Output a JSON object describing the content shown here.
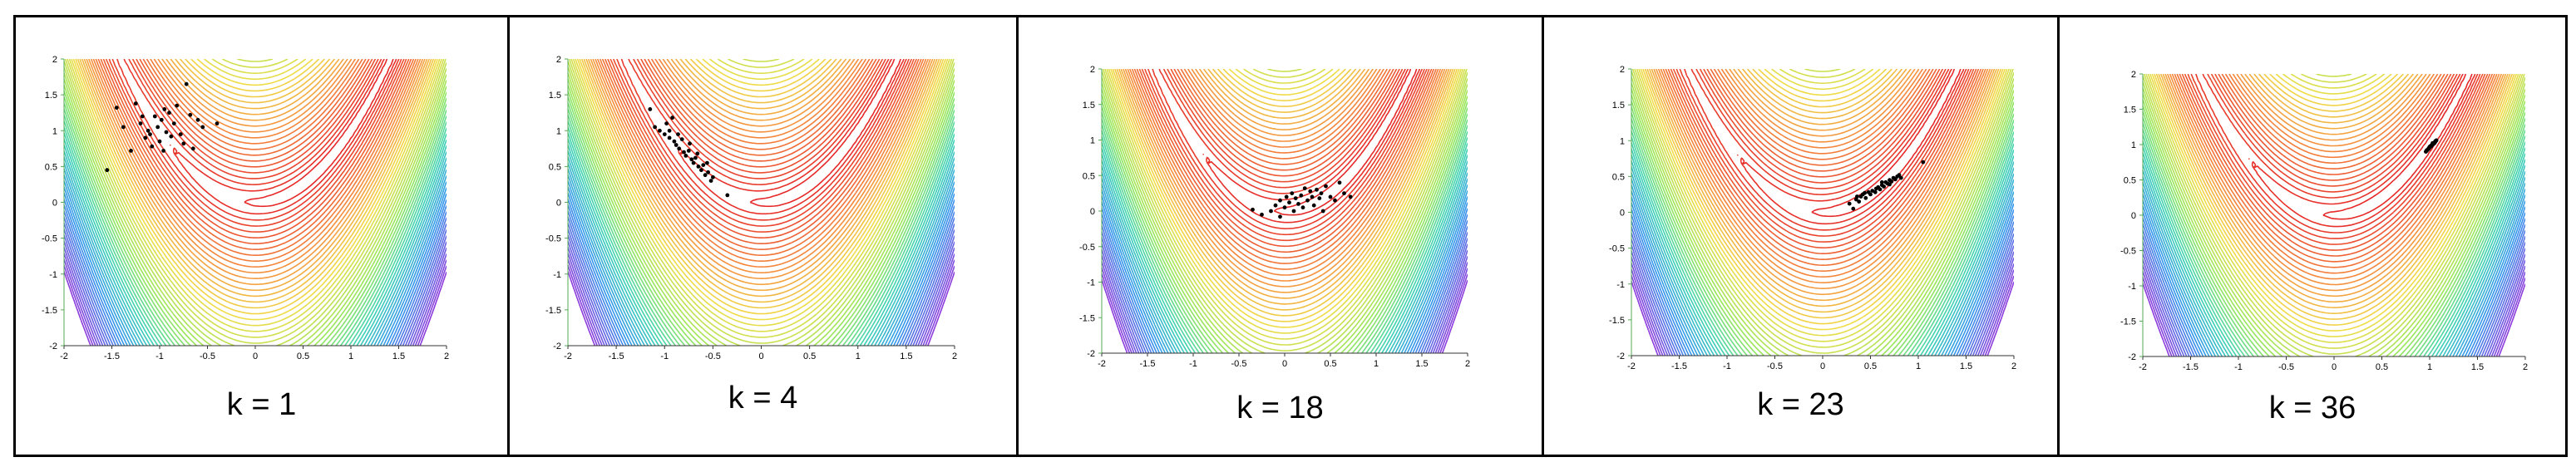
{
  "figure": {
    "colors": {
      "border": "#000000",
      "dots": "#000000",
      "background": "#ffffff"
    }
  },
  "chart_data": [
    {
      "type": "scatter",
      "caption": "k = 1",
      "xlim": [
        -2,
        2
      ],
      "ylim": [
        -2,
        2
      ],
      "x_ticks": [
        "-2",
        "-1.5",
        "-1",
        "-0.5",
        "0",
        "0.5",
        "1",
        "1.5",
        "2"
      ],
      "y_ticks": [
        "2",
        "1.5",
        "1",
        "0.5",
        "0",
        "-0.5",
        "-1",
        "-1.5",
        "-2"
      ],
      "contour_overlay": "colored contour lines of a banana-shaped function (red near center, blue/violet at lower corners)",
      "points": [
        [
          -1.55,
          0.45
        ],
        [
          -1.45,
          1.32
        ],
        [
          -1.38,
          1.05
        ],
        [
          -1.3,
          0.72
        ],
        [
          -1.25,
          1.38
        ],
        [
          -1.2,
          1.1
        ],
        [
          -1.15,
          0.9
        ],
        [
          -1.12,
          1.0
        ],
        [
          -1.1,
          0.95
        ],
        [
          -1.05,
          1.2
        ],
        [
          -1.02,
          1.05
        ],
        [
          -1.0,
          0.85
        ],
        [
          -0.98,
          1.15
        ],
        [
          -0.95,
          1.3
        ],
        [
          -0.93,
          0.98
        ],
        [
          -0.9,
          1.25
        ],
        [
          -0.88,
          0.92
        ],
        [
          -0.85,
          1.1
        ],
        [
          -0.82,
          1.35
        ],
        [
          -0.78,
          0.95
        ],
        [
          -0.75,
          0.82
        ],
        [
          -0.72,
          1.65
        ],
        [
          -0.68,
          1.22
        ],
        [
          -0.65,
          0.75
        ],
        [
          -0.6,
          1.15
        ],
        [
          -0.55,
          1.05
        ],
        [
          -0.4,
          1.1
        ],
        [
          -1.08,
          0.78
        ],
        [
          -0.96,
          0.72
        ],
        [
          -1.18,
          1.2
        ]
      ]
    },
    {
      "type": "scatter",
      "caption": "k = 4",
      "xlim": [
        -2,
        2
      ],
      "ylim": [
        -2,
        2
      ],
      "x_ticks": [
        "-2",
        "-1.5",
        "-1",
        "-0.5",
        "0",
        "0.5",
        "1",
        "1.5",
        "2"
      ],
      "y_ticks": [
        "2",
        "1.5",
        "1",
        "0.5",
        "0",
        "-0.5",
        "-1",
        "-1.5",
        "-2"
      ],
      "contour_overlay": "colored contour lines of a banana-shaped function (red near center, blue/violet at lower corners)",
      "points": [
        [
          -1.15,
          1.3
        ],
        [
          -1.1,
          1.05
        ],
        [
          -1.05,
          1.0
        ],
        [
          -1.0,
          0.95
        ],
        [
          -0.98,
          1.1
        ],
        [
          -0.95,
          0.9
        ],
        [
          -0.92,
          1.18
        ],
        [
          -0.9,
          0.85
        ],
        [
          -0.88,
          0.8
        ],
        [
          -0.85,
          0.75
        ],
        [
          -0.82,
          0.88
        ],
        [
          -0.8,
          0.7
        ],
        [
          -0.78,
          0.65
        ],
        [
          -0.75,
          0.72
        ],
        [
          -0.72,
          0.6
        ],
        [
          -0.7,
          0.55
        ],
        [
          -0.68,
          0.62
        ],
        [
          -0.65,
          0.5
        ],
        [
          -0.62,
          0.45
        ],
        [
          -0.6,
          0.52
        ],
        [
          -0.58,
          0.38
        ],
        [
          -0.55,
          0.42
        ],
        [
          -0.52,
          0.3
        ],
        [
          -0.5,
          0.35
        ],
        [
          -0.35,
          0.1
        ],
        [
          -0.95,
          1.0
        ],
        [
          -0.86,
          0.95
        ],
        [
          -0.74,
          0.82
        ],
        [
          -0.66,
          0.68
        ],
        [
          -0.56,
          0.55
        ]
      ]
    },
    {
      "type": "scatter",
      "caption": "k = 18",
      "xlim": [
        -2,
        2
      ],
      "ylim": [
        -2,
        2
      ],
      "x_ticks": [
        "-2",
        "-1.5",
        "-1",
        "-0.5",
        "0",
        "0.5",
        "1",
        "1.5",
        "2"
      ],
      "y_ticks": [
        "2",
        "1.5",
        "1",
        "0.5",
        "0",
        "-0.5",
        "-1",
        "-1.5",
        "-2"
      ],
      "contour_overlay": "colored contour lines of a banana-shaped function (red near center, blue/violet at lower corners)",
      "points": [
        [
          -0.35,
          0.02
        ],
        [
          -0.25,
          -0.05
        ],
        [
          -0.15,
          0.0
        ],
        [
          -0.1,
          0.08
        ],
        [
          -0.05,
          0.15
        ],
        [
          0.0,
          0.05
        ],
        [
          0.02,
          0.2
        ],
        [
          0.05,
          0.12
        ],
        [
          0.08,
          0.25
        ],
        [
          0.1,
          0.0
        ],
        [
          0.12,
          0.18
        ],
        [
          0.15,
          0.1
        ],
        [
          0.18,
          0.22
        ],
        [
          0.2,
          0.05
        ],
        [
          0.25,
          0.15
        ],
        [
          0.28,
          0.28
        ],
        [
          0.3,
          0.2
        ],
        [
          0.32,
          0.08
        ],
        [
          0.35,
          0.3
        ],
        [
          0.38,
          0.18
        ],
        [
          0.4,
          0.25
        ],
        [
          0.42,
          0.0
        ],
        [
          0.45,
          0.35
        ],
        [
          0.5,
          0.2
        ],
        [
          0.55,
          0.15
        ],
        [
          0.6,
          0.4
        ],
        [
          0.65,
          0.25
        ],
        [
          0.72,
          0.2
        ],
        [
          -0.05,
          -0.08
        ],
        [
          0.22,
          0.32
        ]
      ]
    },
    {
      "type": "scatter",
      "caption": "k = 23",
      "xlim": [
        -2,
        2
      ],
      "ylim": [
        -2,
        2
      ],
      "x_ticks": [
        "-2",
        "-1.5",
        "-1",
        "-0.5",
        "0",
        "0.5",
        "1",
        "1.5",
        "2"
      ],
      "y_ticks": [
        "2",
        "1.5",
        "1",
        "0.5",
        "0",
        "-0.5",
        "-1",
        "-1.5",
        "-2"
      ],
      "contour_overlay": "colored contour lines of a banana-shaped function (red near center, blue/violet at lower corners)",
      "points": [
        [
          0.28,
          0.12
        ],
        [
          0.32,
          0.05
        ],
        [
          0.35,
          0.18
        ],
        [
          0.38,
          0.15
        ],
        [
          0.4,
          0.22
        ],
        [
          0.42,
          0.25
        ],
        [
          0.45,
          0.2
        ],
        [
          0.48,
          0.28
        ],
        [
          0.5,
          0.25
        ],
        [
          0.52,
          0.3
        ],
        [
          0.55,
          0.28
        ],
        [
          0.58,
          0.35
        ],
        [
          0.6,
          0.32
        ],
        [
          0.62,
          0.38
        ],
        [
          0.64,
          0.36
        ],
        [
          0.66,
          0.42
        ],
        [
          0.68,
          0.4
        ],
        [
          0.7,
          0.45
        ],
        [
          0.72,
          0.43
        ],
        [
          0.74,
          0.48
        ],
        [
          0.76,
          0.46
        ],
        [
          0.78,
          0.5
        ],
        [
          0.8,
          0.52
        ],
        [
          0.82,
          0.48
        ],
        [
          1.05,
          0.7
        ],
        [
          0.36,
          0.22
        ],
        [
          0.56,
          0.33
        ],
        [
          0.7,
          0.39
        ],
        [
          0.44,
          0.27
        ],
        [
          0.62,
          0.42
        ]
      ]
    },
    {
      "type": "scatter",
      "caption": "k = 36",
      "xlim": [
        -2,
        2
      ],
      "ylim": [
        -2,
        2
      ],
      "x_ticks": [
        "-2",
        "-1.5",
        "-1",
        "-0.5",
        "0",
        "0.5",
        "1",
        "1.5",
        "2"
      ],
      "y_ticks": [
        "2",
        "1.5",
        "1",
        "0.5",
        "0",
        "-0.5",
        "-1",
        "-1.5",
        "-2"
      ],
      "contour_overlay": "colored contour lines of a banana-shaped function (red near center, blue/violet at lower corners)",
      "points": [
        [
          0.96,
          0.9
        ],
        [
          0.97,
          0.92
        ],
        [
          0.98,
          0.93
        ],
        [
          0.99,
          0.95
        ],
        [
          1.0,
          0.96
        ],
        [
          1.01,
          0.97
        ],
        [
          1.02,
          0.98
        ],
        [
          1.03,
          1.0
        ],
        [
          1.04,
          1.01
        ],
        [
          1.05,
          1.03
        ],
        [
          1.06,
          1.04
        ],
        [
          1.07,
          1.06
        ],
        [
          0.97,
          0.91
        ],
        [
          0.99,
          0.94
        ],
        [
          1.01,
          0.98
        ],
        [
          1.03,
          1.02
        ],
        [
          1.05,
          1.02
        ],
        [
          1.06,
          1.05
        ],
        [
          1.0,
          0.97
        ],
        [
          1.02,
          0.99
        ]
      ]
    }
  ]
}
